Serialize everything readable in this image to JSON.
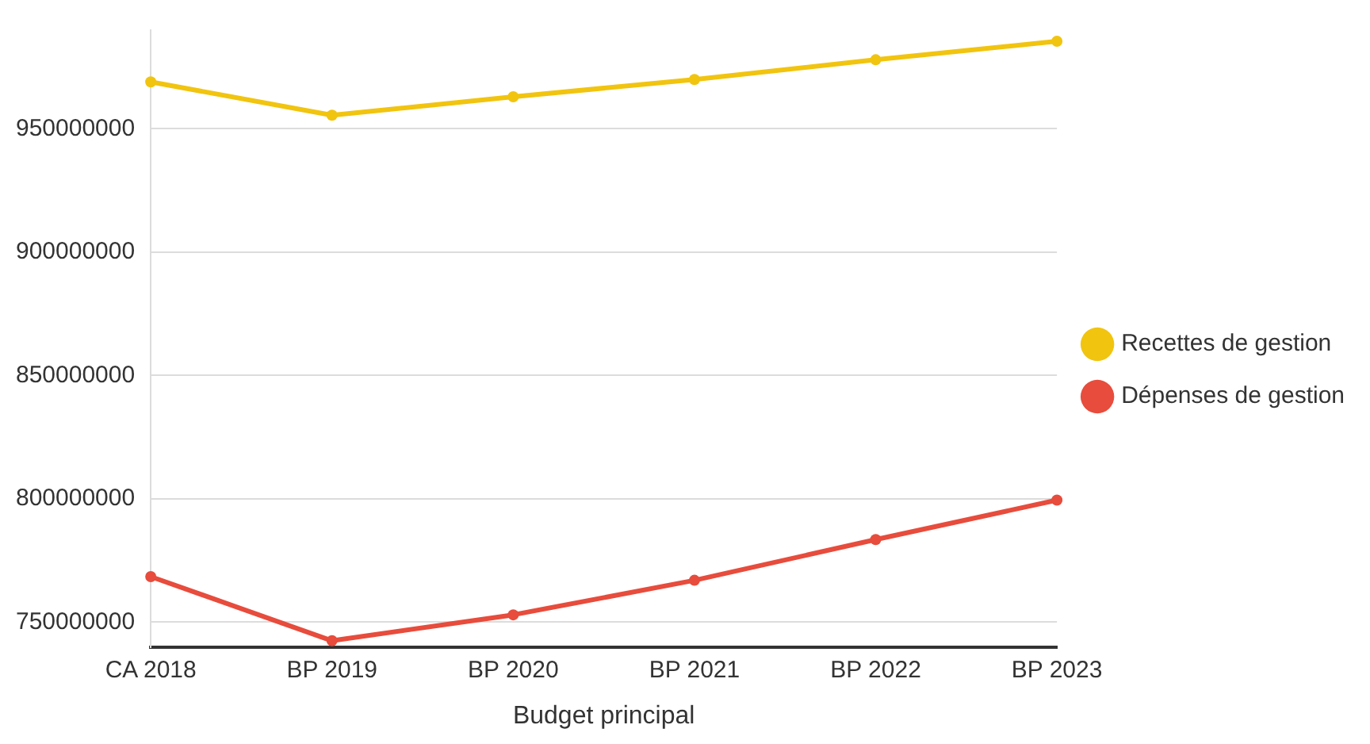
{
  "chart_data": {
    "type": "line",
    "xlabel": "Budget principal",
    "categories": [
      "CA 2018",
      "BP 2019",
      "BP 2020",
      "BP 2021",
      "BP 2022",
      "BP 2023"
    ],
    "series": [
      {
        "name": "Recettes de gestion",
        "color": "#f1c40f",
        "values": [
          969000000,
          955500000,
          963000000,
          970000000,
          978000000,
          985500000
        ]
      },
      {
        "name": "Dépenses de gestion",
        "color": "#e74c3c",
        "values": [
          768500000,
          742500000,
          753000000,
          767000000,
          783500000,
          799500000
        ]
      }
    ],
    "ylim": [
      740000000,
      990000000
    ],
    "yticks": [
      750000000,
      800000000,
      850000000,
      900000000,
      950000000
    ],
    "grid": "y",
    "legend": "right",
    "marker": "circle",
    "line_style": "solid"
  }
}
